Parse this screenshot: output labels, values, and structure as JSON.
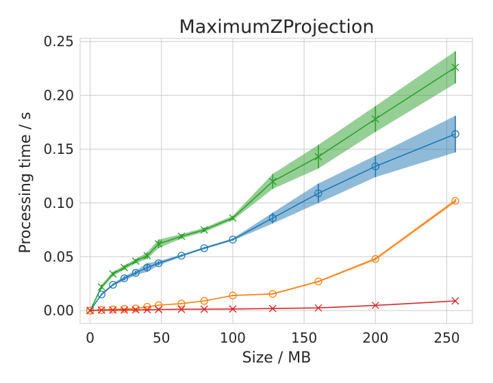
{
  "chart_data": {
    "type": "line",
    "title": "MaximumZProjection",
    "xlabel": "Size / MB",
    "ylabel": "Processing time / s",
    "xlim": [
      -7,
      268
    ],
    "ylim": [
      -0.012,
      0.253
    ],
    "xticks": [
      0,
      50,
      100,
      150,
      200,
      250
    ],
    "xtick_labels": [
      "0",
      "50",
      "100",
      "150",
      "200",
      "250"
    ],
    "yticks": [
      0.0,
      0.05,
      0.1,
      0.15,
      0.2,
      0.25
    ],
    "ytick_labels": [
      "0.00",
      "0.05",
      "0.10",
      "0.15",
      "0.20",
      "0.25"
    ],
    "grid": true,
    "series": [
      {
        "color": "#2ca02c",
        "marker": "x",
        "x": [
          0,
          8,
          16,
          24,
          32,
          40,
          48,
          64,
          80,
          100,
          128,
          160,
          200,
          256
        ],
        "y": [
          0.0,
          0.022,
          0.034,
          0.04,
          0.046,
          0.051,
          0.062,
          0.069,
          0.075,
          0.086,
          0.12,
          0.143,
          0.178,
          0.226
        ],
        "err": [
          0.0,
          0.002,
          0.002,
          0.002,
          0.002,
          0.003,
          0.004,
          0.002,
          0.002,
          0.002,
          0.007,
          0.011,
          0.012,
          0.015
        ]
      },
      {
        "color": "#1f77b4",
        "marker": "o",
        "x": [
          0,
          8,
          16,
          24,
          32,
          40,
          48,
          64,
          80,
          100,
          128,
          160,
          200,
          256
        ],
        "y": [
          0.0,
          0.015,
          0.024,
          0.03,
          0.035,
          0.04,
          0.044,
          0.051,
          0.058,
          0.066,
          0.086,
          0.109,
          0.134,
          0.164
        ],
        "err": [
          0.0,
          0.001,
          0.001,
          0.002,
          0.002,
          0.004,
          0.002,
          0.001,
          0.001,
          0.001,
          0.005,
          0.009,
          0.01,
          0.017
        ]
      },
      {
        "color": "#ff7f0e",
        "marker": "o",
        "x": [
          0,
          8,
          16,
          24,
          32,
          40,
          48,
          64,
          80,
          100,
          128,
          160,
          200,
          256
        ],
        "y": [
          0.0,
          0.0005,
          0.001,
          0.0015,
          0.002,
          0.0035,
          0.005,
          0.0065,
          0.009,
          0.014,
          0.0155,
          0.027,
          0.048,
          0.102
        ],
        "err": [
          0.0,
          0.0002,
          0.0002,
          0.0002,
          0.0002,
          0.0003,
          0.0003,
          0.0004,
          0.0005,
          0.0005,
          0.0006,
          0.0008,
          0.0012,
          0.0016
        ]
      },
      {
        "color": "#d62728",
        "marker": "x",
        "x": [
          0,
          8,
          16,
          24,
          32,
          40,
          48,
          64,
          80,
          100,
          128,
          160,
          200,
          256
        ],
        "y": [
          0.0,
          0.0005,
          0.0005,
          0.0005,
          0.0007,
          0.0008,
          0.001,
          0.0012,
          0.0013,
          0.0015,
          0.0019,
          0.0025,
          0.0048,
          0.009
        ],
        "err": [
          0.0,
          0.0001,
          0.0001,
          0.0001,
          0.0001,
          0.0001,
          0.0001,
          0.0001,
          0.0001,
          0.0001,
          0.0002,
          0.0002,
          0.0003,
          0.0004
        ]
      }
    ]
  }
}
